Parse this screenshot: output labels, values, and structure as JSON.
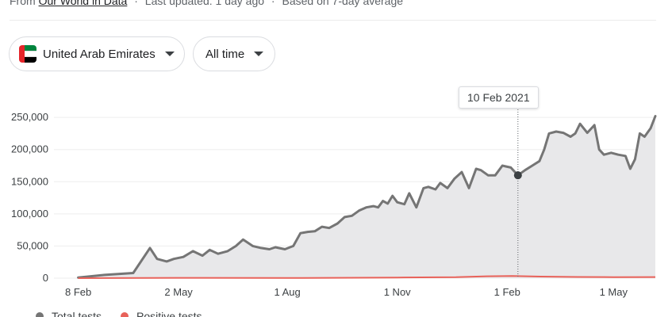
{
  "source": {
    "prefix": "From",
    "link": "Our World in Data",
    "updated": "Last updated: 1 day ago",
    "note": "Based on 7-day average",
    "separator": "·"
  },
  "filters": {
    "country": "United Arab Emirates",
    "range": "All time"
  },
  "colors": {
    "total_tests": "#757575",
    "positive_tests": "#e8625a",
    "area_fill": "#e8e8ea",
    "gridline": "#eeeeee"
  },
  "tooltip": {
    "date": "10 Feb 2021",
    "value": 160000
  },
  "legend": {
    "total_tests": "Total tests",
    "positive_tests": "Positive tests"
  },
  "chart_data": {
    "type": "area",
    "x_tick_labels": [
      "8 Feb",
      "2 May",
      "1 Aug",
      "1 Nov",
      "1 Feb",
      "1 May"
    ],
    "x_tick_dates": [
      "2020-02-08",
      "2020-05-02",
      "2020-08-01",
      "2020-11-01",
      "2021-02-01",
      "2021-05-01"
    ],
    "y_tick_labels": [
      "0",
      "50,000",
      "100,000",
      "150,000",
      "200,000",
      "250,000"
    ],
    "y_ticks": [
      0,
      50000,
      100000,
      150000,
      200000,
      250000
    ],
    "ylim": [
      0,
      260000
    ],
    "xlim": [
      "2020-01-20",
      "2021-06-05"
    ],
    "grid": true,
    "series": [
      {
        "name": "Total tests",
        "color": "#757575",
        "x": [
          "2020-02-08",
          "2020-03-01",
          "2020-03-25",
          "2020-04-08",
          "2020-04-14",
          "2020-04-22",
          "2020-04-28",
          "2020-05-06",
          "2020-05-14",
          "2020-05-22",
          "2020-05-28",
          "2020-06-04",
          "2020-06-12",
          "2020-06-19",
          "2020-06-25",
          "2020-07-03",
          "2020-07-10",
          "2020-07-17",
          "2020-07-22",
          "2020-07-30",
          "2020-08-06",
          "2020-08-12",
          "2020-08-18",
          "2020-08-24",
          "2020-08-30",
          "2020-09-05",
          "2020-09-12",
          "2020-09-18",
          "2020-09-24",
          "2020-09-30",
          "2020-10-06",
          "2020-10-12",
          "2020-10-16",
          "2020-10-20",
          "2020-10-24",
          "2020-10-28",
          "2020-11-01",
          "2020-11-07",
          "2020-11-11",
          "2020-11-17",
          "2020-11-23",
          "2020-11-27",
          "2020-12-03",
          "2020-12-07",
          "2020-12-13",
          "2020-12-19",
          "2020-12-25",
          "2020-12-31",
          "2021-01-06",
          "2021-01-10",
          "2021-01-16",
          "2021-01-22",
          "2021-01-28",
          "2021-02-04",
          "2021-02-10",
          "2021-02-16",
          "2021-02-22",
          "2021-02-28",
          "2021-03-04",
          "2021-03-08",
          "2021-03-14",
          "2021-03-20",
          "2021-03-26",
          "2021-03-30",
          "2021-04-03",
          "2021-04-09",
          "2021-04-15",
          "2021-04-19",
          "2021-04-23",
          "2021-04-29",
          "2021-05-05",
          "2021-05-11",
          "2021-05-15",
          "2021-05-19",
          "2021-05-23",
          "2021-05-27",
          "2021-06-01",
          "2021-06-05"
        ],
        "y": [
          1000,
          5000,
          8000,
          47000,
          30000,
          26000,
          30000,
          33000,
          42000,
          35000,
          44000,
          38000,
          42000,
          50000,
          60000,
          50000,
          47000,
          45000,
          48000,
          45000,
          50000,
          70000,
          72000,
          73000,
          80000,
          78000,
          85000,
          95000,
          97000,
          105000,
          110000,
          112000,
          110000,
          120000,
          116000,
          128000,
          118000,
          115000,
          132000,
          110000,
          140000,
          142000,
          138000,
          148000,
          140000,
          155000,
          165000,
          140000,
          170000,
          168000,
          160000,
          160000,
          175000,
          172000,
          160000,
          168000,
          175000,
          182000,
          200000,
          225000,
          228000,
          226000,
          220000,
          225000,
          240000,
          226000,
          238000,
          200000,
          192000,
          195000,
          192000,
          190000,
          170000,
          185000,
          225000,
          220000,
          233000,
          252000
        ]
      },
      {
        "name": "Positive tests",
        "color": "#e8625a",
        "x": [
          "2020-02-08",
          "2020-05-01",
          "2020-08-01",
          "2020-11-01",
          "2020-12-20",
          "2021-01-15",
          "2021-02-05",
          "2021-03-01",
          "2021-04-01",
          "2021-05-01",
          "2021-06-05"
        ],
        "y": [
          0,
          500,
          300,
          1000,
          1500,
          3000,
          3500,
          2500,
          1800,
          1600,
          1700
        ]
      }
    ]
  }
}
